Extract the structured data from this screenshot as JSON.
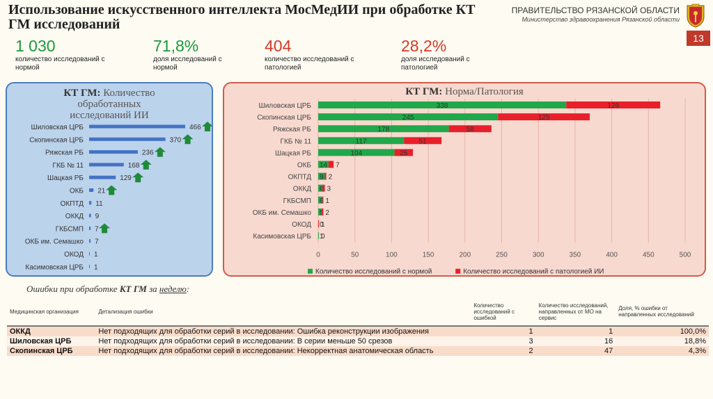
{
  "header": {
    "title": "Использование искусственного интеллекта МосМедИИ при обработке КТ ГМ исследований",
    "gov": "ПРАВИТЕЛЬСТВО РЯЗАНСКОЙ ОБЛАСТИ",
    "ministry": "Министерство здравоохранения Рязанской области",
    "page": "13"
  },
  "stats": [
    {
      "value": "1 030",
      "label": "количество исследований с нормой",
      "color": "#1a9a3c"
    },
    {
      "value": "71,8%",
      "label": "доля исследований с нормой",
      "color": "#1a9a3c"
    },
    {
      "value": "404",
      "label": "количество исследований с патологией",
      "color": "#d23a2a"
    },
    {
      "value": "28,2%",
      "label": "доля исследований с патологией",
      "color": "#d23a2a"
    }
  ],
  "left_title": {
    "bold": "КТ ГМ:",
    "rest": "Количество обработанных исследований ИИ"
  },
  "right_title": {
    "bold": "КТ ГМ:",
    "rest": "Норма/Патология"
  },
  "chart_data": [
    {
      "type": "bar",
      "orientation": "horizontal",
      "title": "КТ ГМ: Количество обработанных исследований ИИ",
      "categories": [
        "Шиловская ЦРБ",
        "Скопинская ЦРБ",
        "Ряжская РБ",
        "ГКБ № 11",
        "Шацкая РБ",
        "ОКБ",
        "ОКПТД",
        "ОККД",
        "ГКБСМП",
        "ОКБ им. Семашко",
        "ОКОД",
        "Касимовская ЦРБ"
      ],
      "values": [
        466,
        370,
        236,
        168,
        129,
        21,
        11,
        9,
        7,
        7,
        1,
        1
      ],
      "trend_up": [
        true,
        true,
        true,
        true,
        true,
        true,
        false,
        false,
        true,
        false,
        false,
        false
      ],
      "colors": {
        "bar": "#4472c4",
        "arrow": "#1e8a3a"
      }
    },
    {
      "type": "bar",
      "orientation": "horizontal",
      "stacked": true,
      "title": "КТ ГМ: Норма/Патология",
      "categories": [
        "Шиловская ЦРБ",
        "Скопинская ЦРБ",
        "Ряжская РБ",
        "ГКБ № 11",
        "Шацкая РБ",
        "ОКБ",
        "ОКПТД",
        "ОККД",
        "ГКБСМП",
        "ОКБ им. Семашко",
        "ОКОД",
        "Касимовская ЦРБ"
      ],
      "series": [
        {
          "name": "Количество исследований с нормой",
          "color": "#21a84a",
          "values": [
            338,
            245,
            178,
            117,
            104,
            14,
            9,
            6,
            6,
            5,
            0,
            1
          ]
        },
        {
          "name": "Количество исследований с патологией ИИ",
          "color": "#e8202a",
          "values": [
            128,
            125,
            58,
            51,
            25,
            7,
            2,
            3,
            1,
            2,
            1,
            0
          ]
        }
      ],
      "xticks": [
        0,
        50,
        100,
        150,
        200,
        250,
        300,
        350,
        400,
        450,
        500
      ],
      "xlim": [
        0,
        500
      ],
      "grid": true,
      "legend": "bottom"
    }
  ],
  "errors": {
    "heading_prefix": "Ошибки при обработке",
    "heading_bold": "КТ ГМ",
    "heading_mid": "за",
    "heading_period": "неделю",
    "heading_suffix": ":",
    "columns": [
      "Медицинская организация",
      "Детализация ошибки",
      "Количество исследований с ошибкой",
      "Количество исследований, направленных от МО на сервис",
      "Доля, % ошибки от направленных исследований"
    ],
    "rows": [
      {
        "org": "ОККД",
        "detail": "Нет подходящих для обработки серий в исследовании: Ошибка реконструкции изображения",
        "errors": "1",
        "sent": "1",
        "share": "100,0%"
      },
      {
        "org": "Шиловская ЦРБ",
        "detail": "Нет подходящих для обработки серий в исследовании: В серии меньше 50 срезов",
        "errors": "3",
        "sent": "16",
        "share": "18,8%"
      },
      {
        "org": "Скопинская ЦРБ",
        "detail": "Нет подходящих для обработки серий в исследовании: Некорректная анатомическая область",
        "errors": "2",
        "sent": "47",
        "share": "4,3%"
      }
    ]
  }
}
